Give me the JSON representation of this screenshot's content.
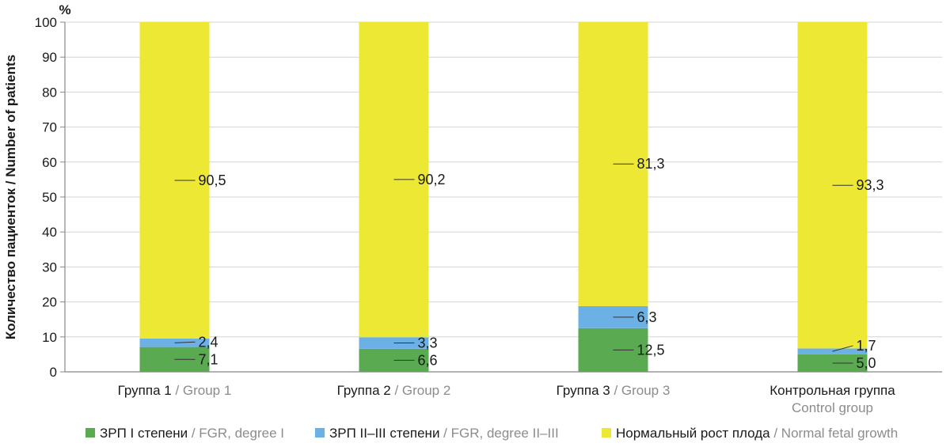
{
  "chart_data": {
    "type": "bar",
    "stacked": true,
    "unit": "%",
    "ylabel": "Количество пациенток / Number of patients",
    "ylim": [
      0,
      100
    ],
    "yticks": [
      0,
      10,
      20,
      30,
      40,
      50,
      60,
      70,
      80,
      90,
      100
    ],
    "grid": true,
    "legend_position": "bottom",
    "categories": [
      {
        "ru": "Группа 1",
        "sep": " / ",
        "en": "Group 1",
        "two_line": false
      },
      {
        "ru": "Группа 2",
        "sep": " / ",
        "en": "Group 2",
        "two_line": false
      },
      {
        "ru": "Группа 3",
        "sep": " / ",
        "en": "Group 3",
        "two_line": false
      },
      {
        "ru": "Контрольная группа",
        "sep": "",
        "en": "Control group",
        "two_line": true
      }
    ],
    "series": [
      {
        "name_ru": "ЗРП I степени",
        "name_en": "FGR, degree I",
        "color": "#5aaa52",
        "values": [
          7.1,
          6.6,
          12.5,
          5.0
        ],
        "labels": [
          "7,1",
          "6,6",
          "12,5",
          "5,0"
        ]
      },
      {
        "name_ru": "ЗРП II–III степени",
        "name_en": "FGR, degree II–III",
        "color": "#6cb1e5",
        "values": [
          2.4,
          3.3,
          6.3,
          1.7
        ],
        "labels": [
          "2,4",
          "3,3",
          "6,3",
          "1,7"
        ]
      },
      {
        "name_ru": "Нормальный рост плода",
        "name_en": "Normal fetal growth",
        "color": "#ede833",
        "values": [
          90.5,
          90.2,
          81.3,
          93.3
        ],
        "labels": [
          "90,5",
          "90,2",
          "81,3",
          "93,3"
        ]
      }
    ]
  }
}
